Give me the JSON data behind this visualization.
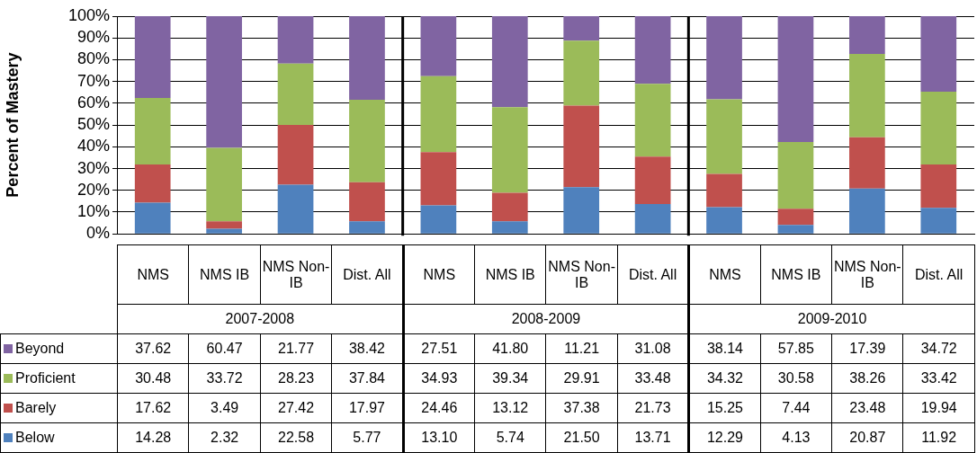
{
  "chart_data": {
    "type": "bar",
    "stacked": true,
    "ylabel": "Percent of Mastery",
    "categories": [
      "NMS",
      "NMS IB",
      "NMS Non-IB",
      "Dist. All",
      "NMS",
      "NMS IB",
      "NMS Non-IB",
      "Dist. All",
      "NMS",
      "NMS IB",
      "NMS Non-IB",
      "Dist. All"
    ],
    "annotations": [
      "2007-2008",
      "2008-2009",
      "2009-2010"
    ],
    "series": [
      {
        "name": "Below",
        "color": "#4f81bd",
        "values": [
          14.28,
          2.32,
          22.58,
          5.77,
          13.1,
          5.74,
          21.5,
          13.71,
          12.29,
          4.13,
          20.87,
          11.92
        ],
        "value_labels": [
          "14.28",
          "2.32",
          "22.58",
          "5.77",
          "13.10",
          "5.74",
          "21.50",
          "13.71",
          "12.29",
          "4.13",
          "20.87",
          "11.92"
        ]
      },
      {
        "name": "Barely",
        "color": "#c0504d",
        "values": [
          17.62,
          3.49,
          27.42,
          17.97,
          24.46,
          13.12,
          37.38,
          21.73,
          15.25,
          7.44,
          23.48,
          19.94
        ],
        "value_labels": [
          "17.62",
          "3.49",
          "27.42",
          "17.97",
          "24.46",
          "13.12",
          "37.38",
          "21.73",
          "15.25",
          "7.44",
          "23.48",
          "19.94"
        ]
      },
      {
        "name": "Proficient",
        "color": "#9bbb59",
        "values": [
          30.48,
          33.72,
          28.23,
          37.84,
          34.93,
          39.34,
          29.91,
          33.48,
          34.32,
          30.58,
          38.26,
          33.42
        ],
        "value_labels": [
          "30.48",
          "33.72",
          "28.23",
          "37.84",
          "34.93",
          "39.34",
          "29.91",
          "33.48",
          "34.32",
          "30.58",
          "38.26",
          "33.42"
        ]
      },
      {
        "name": "Beyond",
        "color": "#8064a2",
        "values": [
          37.62,
          60.47,
          21.77,
          38.42,
          27.51,
          41.8,
          11.21,
          31.08,
          38.14,
          57.85,
          17.39,
          34.72
        ],
        "value_labels": [
          "37.62",
          "60.47",
          "21.77",
          "38.42",
          "27.51",
          "41.80",
          "11.21",
          "31.08",
          "38.14",
          "57.85",
          "17.39",
          "34.72"
        ]
      }
    ],
    "ylim": [
      0,
      100
    ],
    "yticks": [
      {
        "value": 0,
        "label": "0%"
      },
      {
        "value": 10,
        "label": "10%"
      },
      {
        "value": 20,
        "label": "20%"
      },
      {
        "value": 30,
        "label": "30%"
      },
      {
        "value": 40,
        "label": "40%"
      },
      {
        "value": 50,
        "label": "50%"
      },
      {
        "value": 60,
        "label": "60%"
      },
      {
        "value": 70,
        "label": "70%"
      },
      {
        "value": 80,
        "label": "80%"
      },
      {
        "value": 90,
        "label": "90%"
      },
      {
        "value": 100,
        "label": "100%"
      }
    ],
    "grid": "y",
    "legend": "bottom"
  }
}
